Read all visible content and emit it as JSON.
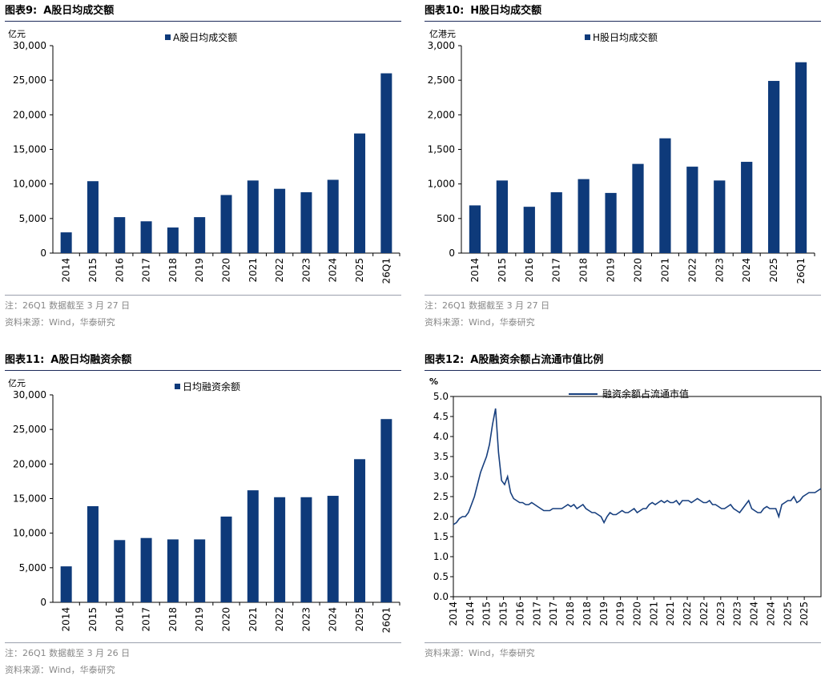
{
  "panels": [
    {
      "title_label": "图表9:",
      "title_text": "A股日均成交额",
      "unit": "亿元",
      "notes": [
        "注：26Q1 数据截至 3 月 27 日",
        "资料来源：Wind，华泰研究"
      ]
    },
    {
      "title_label": "图表10:",
      "title_text": "H股日均成交额",
      "unit": "亿港元",
      "notes": [
        "注：26Q1 数据截至 3 月 27 日",
        "资料来源：Wind，华泰研究"
      ]
    },
    {
      "title_label": "图表11:",
      "title_text": "A股日均融资余额",
      "unit": "亿元",
      "notes": [
        "注：26Q1 数据截至 3 月 26 日",
        "资料来源：Wind，华泰研究"
      ]
    },
    {
      "title_label": "图表12:",
      "title_text": "A股融资余额占流通市值比例",
      "unit": "%",
      "notes": [
        "资料来源：Wind，华泰研究"
      ]
    }
  ],
  "colors": {
    "bar": "#0e3a7a",
    "line": "#173f7e",
    "axis": "#000000"
  },
  "chart_data": [
    {
      "type": "bar",
      "legend": "A股日均成交额",
      "categories": [
        "2014",
        "2015",
        "2016",
        "2017",
        "2018",
        "2019",
        "2020",
        "2021",
        "2022",
        "2023",
        "2024",
        "2025",
        "26Q1"
      ],
      "values": [
        3000,
        10400,
        5200,
        4600,
        3700,
        5200,
        8400,
        10500,
        9300,
        8800,
        10600,
        17300,
        26000
      ],
      "ylim": [
        0,
        30000
      ],
      "yticks": [
        0,
        5000,
        10000,
        15000,
        20000,
        25000,
        30000
      ],
      "ytick_labels": [
        "0",
        "5,000",
        "10,000",
        "15,000",
        "20,000",
        "25,000",
        "30,000"
      ]
    },
    {
      "type": "bar",
      "legend": "H股日均成交额",
      "categories": [
        "2014",
        "2015",
        "2016",
        "2017",
        "2018",
        "2019",
        "2020",
        "2021",
        "2022",
        "2023",
        "2024",
        "2025",
        "26Q1"
      ],
      "values": [
        690,
        1050,
        670,
        880,
        1070,
        870,
        1290,
        1660,
        1250,
        1050,
        1320,
        2490,
        2760
      ],
      "ylim": [
        0,
        3000
      ],
      "yticks": [
        0,
        500,
        1000,
        1500,
        2000,
        2500,
        3000
      ],
      "ytick_labels": [
        "0",
        "500",
        "1,000",
        "1,500",
        "2,000",
        "2,500",
        "3,000"
      ]
    },
    {
      "type": "bar",
      "legend": "日均融资余额",
      "categories": [
        "2014",
        "2015",
        "2016",
        "2017",
        "2018",
        "2019",
        "2020",
        "2021",
        "2022",
        "2023",
        "2024",
        "2025",
        "26Q1"
      ],
      "values": [
        5200,
        13900,
        9000,
        9300,
        9100,
        9100,
        12400,
        16200,
        15200,
        15200,
        15400,
        20700,
        26500
      ],
      "ylim": [
        0,
        30000
      ],
      "yticks": [
        0,
        5000,
        10000,
        15000,
        20000,
        25000,
        30000
      ],
      "ytick_labels": [
        "0",
        "5,000",
        "10,000",
        "15,000",
        "20,000",
        "25,000",
        "30,000"
      ]
    },
    {
      "type": "line",
      "legend": "融资余额占流通市值",
      "x": [
        2014.0,
        2014.1,
        2014.2,
        2014.3,
        2014.4,
        2014.5,
        2014.6,
        2014.7,
        2014.8,
        2014.9,
        2015.0,
        2015.1,
        2015.2,
        2015.3,
        2015.4,
        2015.5,
        2015.6,
        2015.7,
        2015.8,
        2015.9,
        2016.0,
        2016.1,
        2016.2,
        2016.3,
        2016.4,
        2016.5,
        2016.6,
        2016.7,
        2016.8,
        2016.9,
        2017.0,
        2017.1,
        2017.2,
        2017.3,
        2017.4,
        2017.5,
        2017.6,
        2017.7,
        2017.8,
        2017.9,
        2018.0,
        2018.1,
        2018.2,
        2018.3,
        2018.4,
        2018.5,
        2018.6,
        2018.7,
        2018.8,
        2018.9,
        2019.0,
        2019.1,
        2019.2,
        2019.3,
        2019.4,
        2019.5,
        2019.6,
        2019.7,
        2019.8,
        2019.9,
        2020.0,
        2020.1,
        2020.2,
        2020.3,
        2020.4,
        2020.5,
        2020.6,
        2020.7,
        2020.8,
        2020.9,
        2021.0,
        2021.1,
        2021.2,
        2021.3,
        2021.4,
        2021.5,
        2021.6,
        2021.7,
        2021.8,
        2021.9,
        2022.0,
        2022.1,
        2022.2,
        2022.3,
        2022.4,
        2022.5,
        2022.6,
        2022.7,
        2022.8,
        2022.9,
        2023.0,
        2023.1,
        2023.2,
        2023.3,
        2023.4,
        2023.5,
        2023.6,
        2023.7,
        2023.8,
        2023.9,
        2024.0,
        2024.1,
        2024.2,
        2024.3,
        2024.4,
        2024.5,
        2024.6,
        2024.7,
        2024.8,
        2024.9,
        2025.0,
        2025.1,
        2025.2,
        2025.3,
        2025.4,
        2025.5,
        2025.6,
        2025.7,
        2025.8,
        2025.9,
        2026.0,
        2026.2
      ],
      "values": [
        1.8,
        1.85,
        1.95,
        2.0,
        2.0,
        2.1,
        2.3,
        2.5,
        2.8,
        3.1,
        3.3,
        3.5,
        3.8,
        4.3,
        4.7,
        3.6,
        2.9,
        2.8,
        3.0,
        2.6,
        2.45,
        2.4,
        2.35,
        2.35,
        2.3,
        2.3,
        2.35,
        2.3,
        2.25,
        2.2,
        2.15,
        2.15,
        2.15,
        2.2,
        2.2,
        2.2,
        2.2,
        2.25,
        2.3,
        2.25,
        2.3,
        2.2,
        2.25,
        2.3,
        2.2,
        2.15,
        2.1,
        2.1,
        2.05,
        2.0,
        1.85,
        2.0,
        2.1,
        2.05,
        2.05,
        2.1,
        2.15,
        2.1,
        2.1,
        2.15,
        2.2,
        2.1,
        2.15,
        2.2,
        2.2,
        2.3,
        2.35,
        2.3,
        2.35,
        2.4,
        2.35,
        2.4,
        2.35,
        2.35,
        2.4,
        2.3,
        2.4,
        2.4,
        2.4,
        2.35,
        2.4,
        2.45,
        2.4,
        2.35,
        2.35,
        2.4,
        2.3,
        2.3,
        2.25,
        2.2,
        2.2,
        2.25,
        2.3,
        2.2,
        2.15,
        2.1,
        2.2,
        2.3,
        2.4,
        2.2,
        2.15,
        2.1,
        2.1,
        2.2,
        2.25,
        2.2,
        2.2,
        2.2,
        2.0,
        2.3,
        2.35,
        2.4,
        2.4,
        2.5,
        2.35,
        2.4,
        2.5,
        2.55,
        2.6,
        2.6,
        2.6,
        2.7
      ],
      "ylim": [
        0,
        5
      ],
      "yticks": [
        0,
        0.5,
        1,
        1.5,
        2,
        2.5,
        3,
        3.5,
        4,
        4.5,
        5
      ],
      "ytick_labels": [
        "0.0",
        "0.5",
        "1.0",
        "1.5",
        "2.0",
        "2.5",
        "3.0",
        "3.5",
        "4.0",
        "4.5",
        "5.0"
      ],
      "xlim": [
        2014.0,
        2026.2
      ],
      "xtick_labels": [
        "2014",
        "2014",
        "2015",
        "2015",
        "2016",
        "2017",
        "2017",
        "2018",
        "2018",
        "2019",
        "2019",
        "2020",
        "2021",
        "2021",
        "2022",
        "2022",
        "2023",
        "2023",
        "2024",
        "2024",
        "2025",
        "2025"
      ]
    }
  ]
}
